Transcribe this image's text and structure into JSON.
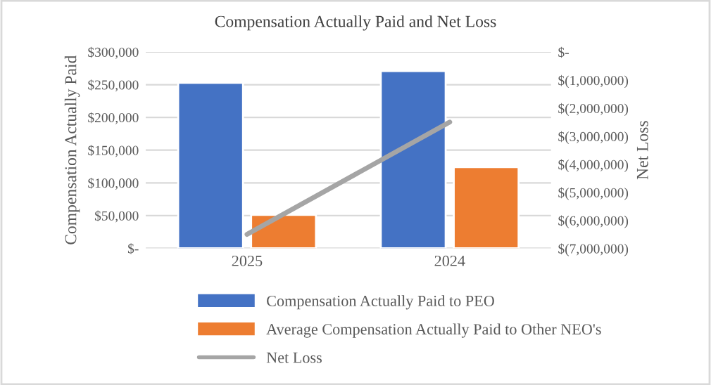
{
  "chart_data": {
    "type": "bar",
    "title": "Compensation Actually Paid and Net Loss",
    "categories": [
      "2025",
      "2024"
    ],
    "ylabel": "Compensation Actually Paid",
    "y2label": "Net Loss",
    "series": [
      {
        "name": "Compensation Actually Paid to PEO",
        "color": "#4472c4",
        "values": [
          253000,
          271000
        ]
      },
      {
        "name": "Average Compensation Actually Paid to Other NEO's",
        "color": "#ed7d31",
        "values": [
          51000,
          124000
        ]
      },
      {
        "name": "Net Loss",
        "type": "line",
        "axis": "y2",
        "color": "#a5a5a5",
        "values": [
          -6500000,
          -2500000
        ]
      }
    ],
    "ylim": [
      0,
      300000
    ],
    "yticks": [
      {
        "value": 0,
        "label": "$-"
      },
      {
        "value": 50000,
        "label": "$50,000"
      },
      {
        "value": 100000,
        "label": "$100,000"
      },
      {
        "value": 150000,
        "label": "$150,000"
      },
      {
        "value": 200000,
        "label": "$200,000"
      },
      {
        "value": 250000,
        "label": "$250,000"
      },
      {
        "value": 300000,
        "label": "$300,000"
      }
    ],
    "y2lim": [
      -7000000,
      0
    ],
    "y2ticks": [
      {
        "value": -7000000,
        "label": "$(7,000,000)"
      },
      {
        "value": -6000000,
        "label": "$(6,000,000)"
      },
      {
        "value": -5000000,
        "label": "$(5,000,000)"
      },
      {
        "value": -4000000,
        "label": "$(4,000,000)"
      },
      {
        "value": -3000000,
        "label": "$(3,000,000)"
      },
      {
        "value": -2000000,
        "label": "$(2,000,000)"
      },
      {
        "value": -1000000,
        "label": "$(1,000,000)"
      },
      {
        "value": 0,
        "label": "$-"
      }
    ],
    "grid": "y",
    "legend": "bottom"
  }
}
